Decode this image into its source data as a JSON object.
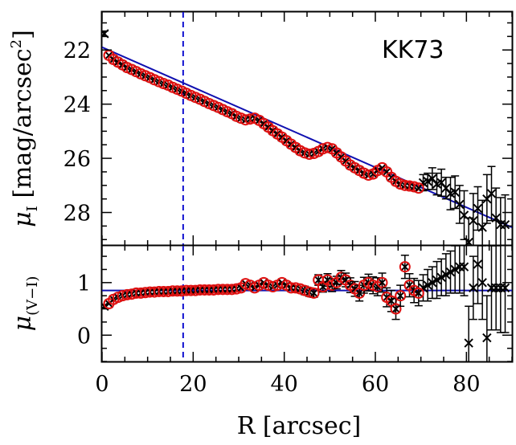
{
  "chart_data": [
    {
      "type": "scatter",
      "panel": "surface-brightness",
      "annotation": "KK73",
      "ylabel": "μ_I [mag/arcsec²]",
      "xlim": [
        0,
        90
      ],
      "ylim": [
        29.2,
        20.6
      ],
      "y_inverted": true,
      "xticks": [
        0,
        20,
        40,
        60,
        80
      ],
      "yticks": [
        22,
        24,
        26,
        28
      ],
      "vline_x": 17.8,
      "fit_line": {
        "x": [
          0,
          90
        ],
        "y": [
          21.9,
          28.55
        ]
      },
      "fitted_points": {
        "x": [
          1.5,
          2.5,
          3.5,
          4.5,
          5.5,
          6.5,
          7.5,
          8.5,
          9.5,
          10.5,
          11.5,
          12.5,
          13.5,
          14.5,
          15.5,
          16.5,
          17.5,
          18.5,
          19.5,
          20.5,
          21.5,
          22.5,
          23.5,
          24.5,
          25.5,
          26.5,
          27.5,
          28.5,
          29.5,
          30.5,
          31.5,
          32.5,
          33.5,
          34.5,
          35.5,
          36.5,
          37.5,
          38.5,
          39.5,
          40.5,
          41.5,
          42.5,
          43.5,
          44.5,
          45.5,
          46.5,
          47.5,
          48.5,
          49.5,
          50.5,
          51.5,
          52.5,
          53.5,
          54.5,
          55.5,
          56.5,
          57.5,
          58.5,
          59.5,
          60.5,
          61.5,
          62.5,
          63.5,
          64.5,
          65.5,
          66.5,
          67.5,
          68.5,
          69.5
        ],
        "y": [
          22.2,
          22.35,
          22.45,
          22.55,
          22.65,
          22.72,
          22.8,
          22.88,
          22.95,
          23.02,
          23.1,
          23.17,
          23.24,
          23.3,
          23.38,
          23.45,
          23.52,
          23.6,
          23.68,
          23.75,
          23.82,
          23.9,
          23.98,
          24.05,
          24.12,
          24.2,
          24.28,
          24.35,
          24.45,
          24.52,
          24.58,
          24.55,
          24.52,
          24.6,
          24.72,
          24.85,
          24.98,
          25.1,
          25.22,
          25.35,
          25.48,
          25.6,
          25.72,
          25.8,
          25.85,
          25.82,
          25.75,
          25.65,
          25.6,
          25.65,
          25.8,
          25.95,
          26.1,
          26.25,
          26.35,
          26.45,
          26.55,
          26.62,
          26.58,
          26.45,
          26.35,
          26.5,
          26.7,
          26.85,
          26.95,
          27.0,
          27.02,
          27.05,
          27.1
        ]
      },
      "other_points": {
        "x": [
          0.5,
          70.5,
          71.5,
          72.5,
          73.5,
          74.5,
          75.5,
          76.5,
          77.5,
          78.5,
          79.5,
          80.5,
          81.5,
          82.5,
          83.5,
          84.5,
          85.5,
          86.5,
          87.5,
          88.5
        ],
        "y": [
          21.4,
          26.9,
          26.85,
          26.75,
          26.95,
          26.9,
          27.1,
          27.3,
          27.25,
          27.7,
          28.1,
          29.1,
          28.3,
          27.85,
          28.55,
          27.5,
          27.3,
          28.2,
          28.45,
          28.45
        ],
        "yerr": [
          0.1,
          0.3,
          0.3,
          0.4,
          0.4,
          0.5,
          0.4,
          0.6,
          0.6,
          0.7,
          0.9,
          0.9,
          1.0,
          0.8,
          1.0,
          0.9,
          1.0,
          1.1,
          1.0,
          1.1
        ]
      }
    },
    {
      "type": "scatter",
      "panel": "color-profile",
      "ylabel": "μ_(V-I)",
      "xlabel": "R [arcsec]",
      "xlim": [
        0,
        90
      ],
      "ylim": [
        -0.5,
        1.7
      ],
      "xticks": [
        0,
        20,
        40,
        60,
        80
      ],
      "yticks": [
        0,
        1
      ],
      "vline_x": 17.8,
      "fit_line": {
        "x": [
          0,
          90
        ],
        "y": [
          0.85,
          0.85
        ]
      },
      "fitted_points": {
        "x": [
          1.5,
          2.5,
          3.5,
          4.5,
          5.5,
          6.5,
          7.5,
          8.5,
          9.5,
          10.5,
          11.5,
          12.5,
          13.5,
          14.5,
          15.5,
          16.5,
          17.5,
          18.5,
          19.5,
          20.5,
          21.5,
          22.5,
          23.5,
          24.5,
          25.5,
          26.5,
          27.5,
          28.5,
          29.5,
          30.5,
          31.5,
          32.5,
          33.5,
          34.5,
          35.5,
          36.5,
          37.5,
          38.5,
          39.5,
          40.5,
          41.5,
          42.5,
          43.5,
          44.5,
          45.5,
          46.5,
          47.5,
          48.5,
          49.5,
          50.5,
          51.5,
          52.5,
          53.5,
          54.5,
          55.5,
          56.5,
          57.5,
          58.5,
          59.5,
          60.5,
          61.5,
          62.5,
          63.5,
          64.5,
          65.5,
          66.5,
          67.5,
          68.5,
          69.5
        ],
        "y": [
          0.6,
          0.68,
          0.72,
          0.75,
          0.77,
          0.78,
          0.8,
          0.8,
          0.81,
          0.82,
          0.82,
          0.83,
          0.83,
          0.83,
          0.84,
          0.84,
          0.84,
          0.85,
          0.85,
          0.85,
          0.86,
          0.86,
          0.86,
          0.86,
          0.87,
          0.87,
          0.87,
          0.87,
          0.88,
          0.9,
          0.98,
          0.95,
          0.9,
          0.95,
          1.0,
          0.95,
          0.92,
          0.95,
          1.0,
          0.95,
          0.9,
          0.9,
          0.88,
          0.85,
          0.82,
          0.8,
          1.05,
          0.92,
          1.05,
          0.95,
          1.0,
          1.1,
          1.05,
          0.95,
          0.88,
          0.8,
          0.95,
          1.0,
          0.95,
          0.92,
          1.0,
          0.72,
          0.65,
          0.5,
          0.75,
          1.3,
          0.95,
          0.85,
          0.8
        ],
        "yerr": [
          0.05,
          0.05,
          0.05,
          0.05,
          0.05,
          0.05,
          0.05,
          0.05,
          0.05,
          0.05,
          0.05,
          0.05,
          0.05,
          0.05,
          0.05,
          0.05,
          0.05,
          0.05,
          0.05,
          0.05,
          0.05,
          0.05,
          0.05,
          0.05,
          0.05,
          0.05,
          0.05,
          0.05,
          0.05,
          0.05,
          0.06,
          0.06,
          0.06,
          0.06,
          0.06,
          0.06,
          0.06,
          0.06,
          0.06,
          0.07,
          0.07,
          0.07,
          0.07,
          0.08,
          0.08,
          0.08,
          0.1,
          0.1,
          0.12,
          0.12,
          0.12,
          0.13,
          0.13,
          0.14,
          0.14,
          0.15,
          0.15,
          0.16,
          0.16,
          0.17,
          0.18,
          0.18,
          0.2,
          0.2,
          0.2,
          0.22,
          0.22,
          0.23,
          0.24
        ]
      },
      "other_points": {
        "x": [
          0.5,
          70.5,
          71.5,
          72.5,
          73.5,
          74.5,
          75.5,
          76.5,
          77.5,
          78.5,
          79.5,
          80.5,
          81.5,
          82.5,
          83.5,
          84.5,
          85.5,
          86.5,
          87.5,
          88.5
        ],
        "y": [
          0.55,
          0.9,
          0.95,
          1.0,
          1.05,
          1.1,
          1.15,
          1.2,
          1.25,
          1.3,
          1.3,
          -0.15,
          0.9,
          1.35,
          1.0,
          -0.05,
          0.9,
          0.9,
          0.9,
          0.9
        ],
        "yerr": [
          0.03,
          0.25,
          0.3,
          0.3,
          0.35,
          0.35,
          0.4,
          0.4,
          0.45,
          0.5,
          0.55,
          0.7,
          0.6,
          0.75,
          0.7,
          0.8,
          0.8,
          0.8,
          0.85,
          0.85
        ]
      }
    }
  ]
}
